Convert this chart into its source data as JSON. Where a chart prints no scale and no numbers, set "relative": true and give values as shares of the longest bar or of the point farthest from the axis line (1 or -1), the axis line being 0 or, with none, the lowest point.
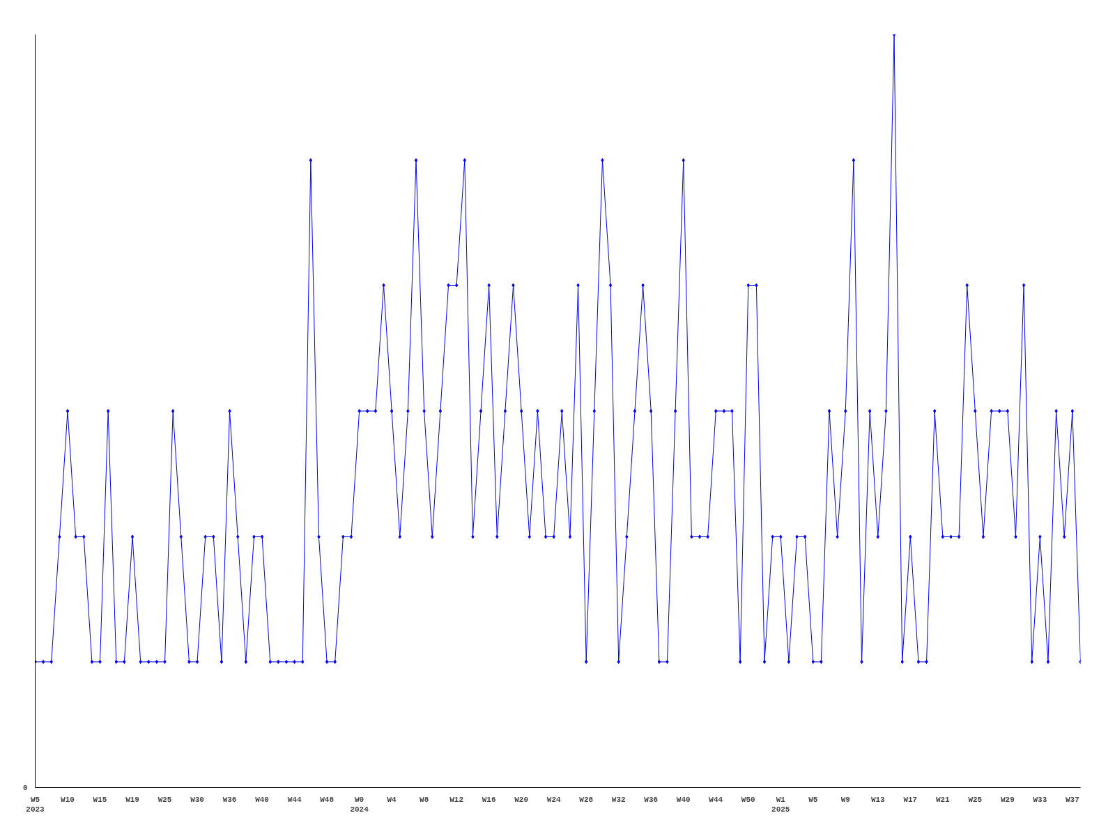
{
  "chart_data": {
    "type": "line",
    "relative": true,
    "marker": "diamond",
    "line_style": "solid",
    "grid": false,
    "legend": false,
    "annotations": [
      "0"
    ],
    "categories": [
      "W5\n2023",
      null,
      null,
      null,
      "W10",
      null,
      null,
      null,
      "W15",
      null,
      null,
      null,
      "W19",
      null,
      null,
      null,
      "W25",
      null,
      null,
      null,
      "W30",
      null,
      null,
      null,
      "W36",
      null,
      null,
      null,
      "W40",
      null,
      null,
      null,
      "W44",
      null,
      null,
      null,
      "W48",
      null,
      null,
      null,
      "W0\n2024",
      null,
      null,
      null,
      "W4",
      null,
      null,
      null,
      "W8",
      null,
      null,
      null,
      "W12",
      null,
      null,
      null,
      "W16",
      null,
      null,
      null,
      "W20",
      null,
      null,
      null,
      "W24",
      null,
      null,
      null,
      "W28",
      null,
      null,
      null,
      "W32",
      null,
      null,
      null,
      "W36",
      null,
      null,
      null,
      "W40",
      null,
      null,
      null,
      "W44",
      null,
      null,
      null,
      "W50",
      null,
      null,
      null,
      "W1\n2025",
      null,
      null,
      null,
      "W5",
      null,
      null,
      null,
      "W9",
      null,
      null,
      null,
      "W13",
      null,
      null,
      null,
      "W17",
      null,
      null,
      null,
      "W21",
      null,
      null,
      null,
      "W25",
      null,
      null,
      null,
      "W29",
      null,
      null,
      null,
      "W33",
      null,
      null,
      null,
      "W37",
      null
    ],
    "series": [
      {
        "color": "#0000ff",
        "values": [
          0.167,
          0.167,
          0.167,
          0.333,
          0.5,
          0.333,
          0.333,
          0.167,
          0.167,
          0.5,
          0.167,
          0.167,
          0.333,
          0.167,
          0.167,
          0.167,
          0.167,
          0.5,
          0.333,
          0.167,
          0.167,
          0.333,
          0.333,
          0.167,
          0.5,
          0.333,
          0.167,
          0.333,
          0.333,
          0.167,
          0.167,
          0.167,
          0.167,
          0.167,
          0.833,
          0.333,
          0.167,
          0.167,
          0.333,
          0.333,
          0.5,
          0.5,
          0.5,
          0.667,
          0.5,
          0.333,
          0.5,
          0.833,
          0.5,
          0.333,
          0.5,
          0.667,
          0.667,
          0.833,
          0.333,
          0.5,
          0.667,
          0.333,
          0.5,
          0.667,
          0.5,
          0.333,
          0.5,
          0.333,
          0.333,
          0.5,
          0.333,
          0.667,
          0.167,
          0.5,
          0.833,
          0.667,
          0.167,
          0.333,
          0.5,
          0.667,
          0.5,
          0.167,
          0.167,
          0.5,
          0.833,
          0.333,
          0.333,
          0.333,
          0.5,
          0.5,
          0.5,
          0.167,
          0.667,
          0.667,
          0.167,
          0.333,
          0.333,
          0.167,
          0.333,
          0.333,
          0.167,
          0.167,
          0.5,
          0.333,
          0.5,
          0.833,
          0.167,
          0.5,
          0.333,
          0.5,
          1,
          0.167,
          0.333,
          0.167,
          0.167,
          0.5,
          0.333,
          0.333,
          0.333,
          0.667,
          0.5,
          0.333,
          0.5,
          0.5,
          0.5,
          0.333,
          0.667,
          0.167,
          0.333,
          0.167,
          0.5,
          0.333,
          0.5,
          0.167
        ]
      }
    ]
  }
}
